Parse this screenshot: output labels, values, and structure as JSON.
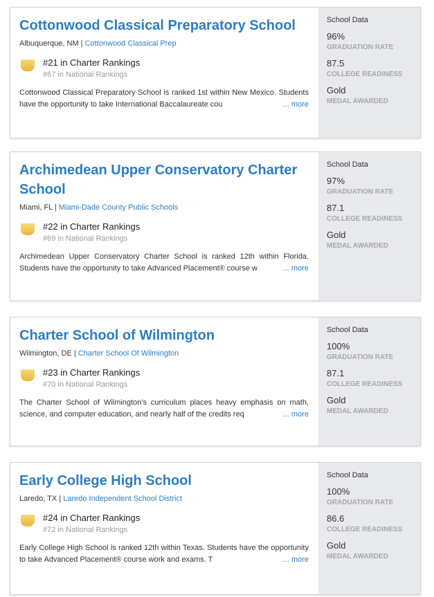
{
  "side_heading": "School Data",
  "labels": {
    "grad": "GRADUATION RATE",
    "college": "COLLEGE READINESS",
    "medal": "MEDAL AWARDED"
  },
  "more_label": "... more",
  "badge_color": "#eab63a",
  "link_color": "#2a7dc4",
  "schools": [
    {
      "name": "Cottonwood Classical Preparatory School",
      "location": "Albuquerque, NM",
      "district": "Cottonwood Classical Prep",
      "charter_rank": "#21 in Charter Rankings",
      "national_rank": "#67 in National Rankings",
      "description": "Cottonwood Classical Preparatory School is ranked 1st within New Mexico. Students have the opportunity to take International Baccalaureate cou",
      "grad": "96%",
      "college": "87.5",
      "medal": "Gold"
    },
    {
      "name": "Archimedean Upper Conservatory Charter School",
      "location": "Miami, FL",
      "district": "Miami-Dade County Public Schools",
      "charter_rank": "#22 in Charter Rankings",
      "national_rank": "#69 in National Rankings",
      "description": "Archimedean Upper Conservatory Charter School is ranked 12th within Florida. Students have the opportunity to take Advanced Placement® course w",
      "grad": "97%",
      "college": "87.1",
      "medal": "Gold"
    },
    {
      "name": "Charter School of Wilmington",
      "location": "Wilmington, DE",
      "district": "Charter School Of Wilmington",
      "charter_rank": "#23 in Charter Rankings",
      "national_rank": "#70 in National Rankings",
      "description": "The Charter School of Wilmington's curriculum places heavy emphasis on math, science, and computer education, and nearly half of the credits req",
      "grad": "100%",
      "college": "87.1",
      "medal": "Gold"
    },
    {
      "name": "Early College High School",
      "location": "Laredo, TX",
      "district": "Laredo Independent School District",
      "charter_rank": "#24 in Charter Rankings",
      "national_rank": "#72 in National Rankings",
      "description": "Early College High School is ranked 12th within Texas. Students have the opportunity to take Advanced Placement® course work and exams. T",
      "grad": "100%",
      "college": "86.6",
      "medal": "Gold"
    }
  ]
}
